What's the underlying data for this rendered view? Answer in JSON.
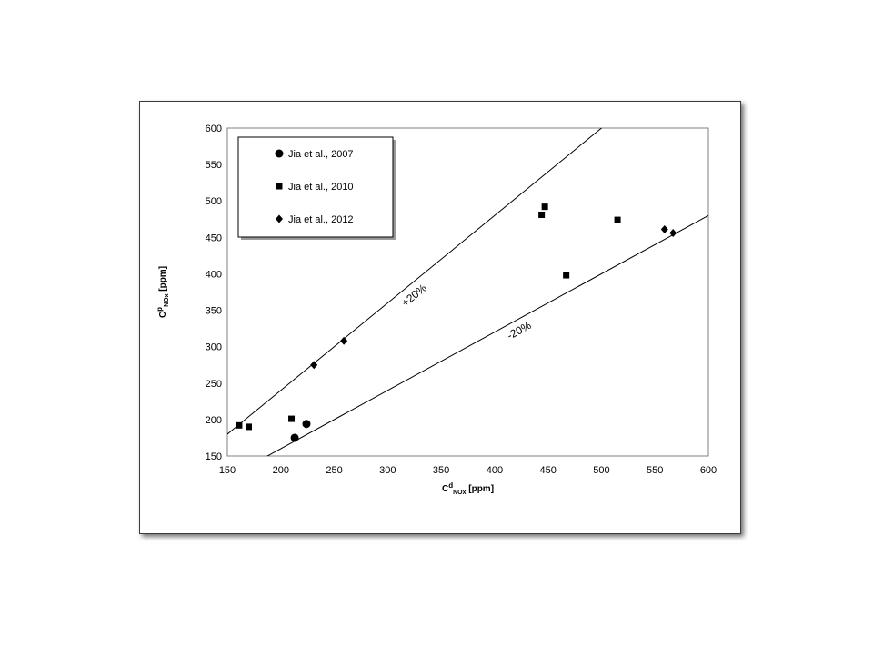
{
  "chart_data": {
    "type": "scatter",
    "xlabel": {
      "main": "C",
      "sup": "d",
      "sub": "NOx",
      "unit": " [ppm]"
    },
    "ylabel": {
      "main": "C",
      "sup": "p",
      "sub": "NOx",
      "unit": " [ppm]"
    },
    "xlim": [
      150,
      600
    ],
    "ylim": [
      150,
      600
    ],
    "xticks": [
      150,
      200,
      250,
      300,
      350,
      400,
      450,
      500,
      550,
      600
    ],
    "yticks": [
      150,
      200,
      250,
      300,
      350,
      400,
      450,
      500,
      550,
      600
    ],
    "grid": false,
    "legend_position": "top-left",
    "series": [
      {
        "name": "Jia et al., 2007",
        "marker": "circle",
        "points": [
          [
            213,
            175
          ],
          [
            224,
            194
          ]
        ]
      },
      {
        "name": "Jia et al., 2010",
        "marker": "square",
        "points": [
          [
            161,
            192
          ],
          [
            170,
            190
          ],
          [
            210,
            201
          ],
          [
            444,
            481
          ],
          [
            447,
            492
          ],
          [
            467,
            398
          ],
          [
            515,
            474
          ]
        ]
      },
      {
        "name": "Jia et al., 2012",
        "marker": "diamond",
        "points": [
          [
            231,
            275
          ],
          [
            259,
            308
          ],
          [
            559,
            461
          ],
          [
            567,
            456
          ]
        ]
      }
    ],
    "reference_lines": [
      {
        "label": "+20%",
        "slope": 1.2
      },
      {
        "label": "-20%",
        "slope": 0.8
      }
    ]
  }
}
